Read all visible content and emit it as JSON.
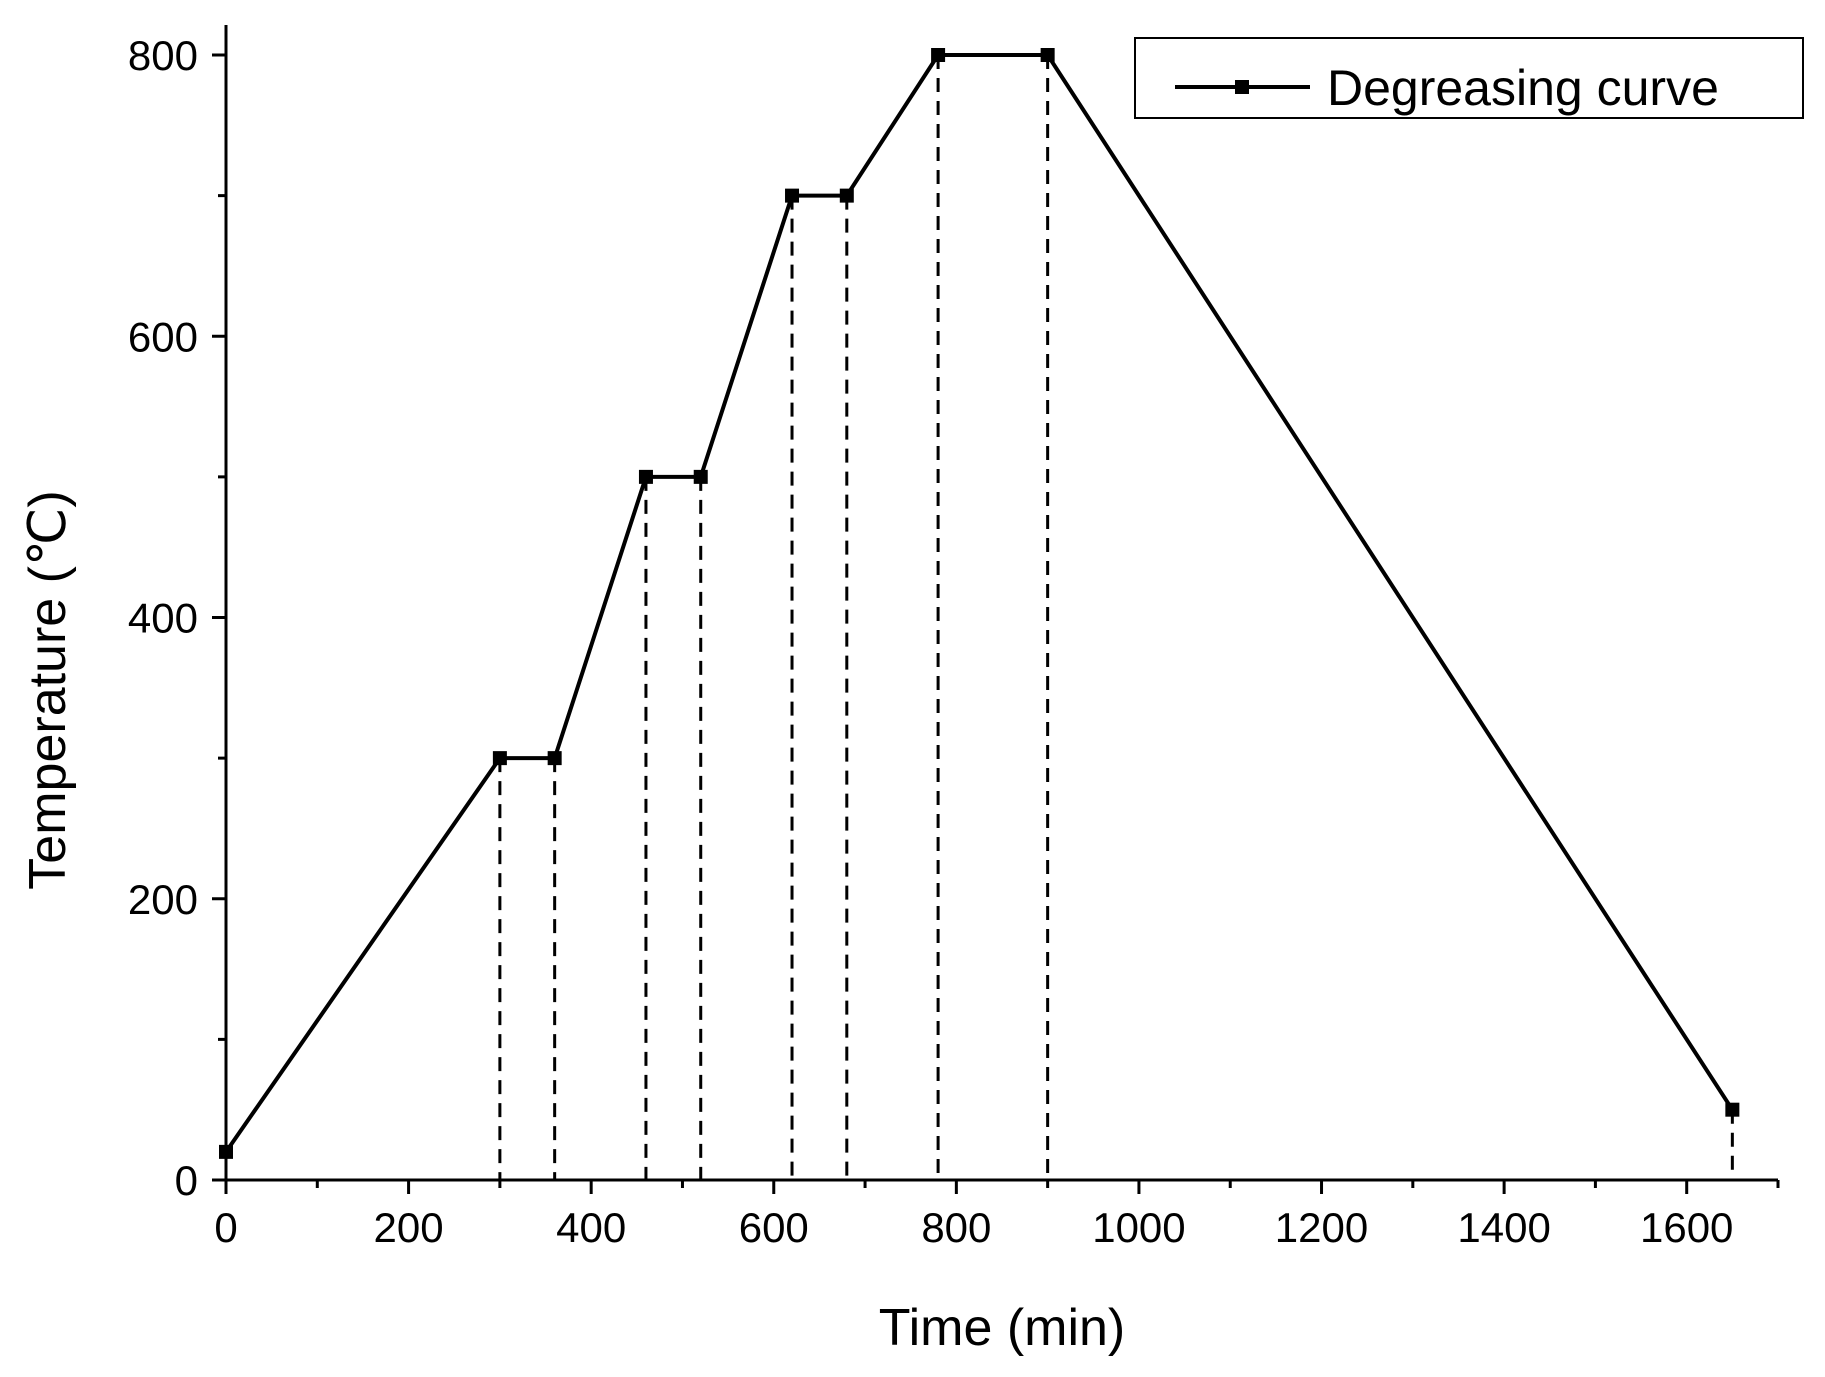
{
  "chart_data": {
    "type": "line",
    "title": "",
    "xlabel": "Time (min)",
    "ylabel": "Temperature (℃)",
    "xlim": [
      0,
      1700
    ],
    "ylim": [
      0,
      800
    ],
    "x_ticks": [
      0,
      200,
      400,
      600,
      800,
      1000,
      1200,
      1400,
      1600
    ],
    "x_tick_labels": [
      "0",
      "200",
      "400",
      "600",
      "800",
      "1000",
      "1200",
      "1400",
      "1600"
    ],
    "x_minor_ticks": [
      100,
      300,
      500,
      700,
      900,
      1100,
      1300,
      1500,
      1700
    ],
    "y_ticks": [
      0,
      200,
      400,
      600,
      800
    ],
    "y_tick_labels": [
      "0",
      "200",
      "400",
      "600",
      "800"
    ],
    "y_minor_ticks": [
      100,
      300,
      500,
      700
    ],
    "grid": false,
    "legend_position": "top-right",
    "series": [
      {
        "name": "Degreasing curve",
        "color": "#000000",
        "marker": "square",
        "x": [
          0,
          300,
          360,
          460,
          520,
          620,
          680,
          780,
          900,
          1650
        ],
        "y": [
          20,
          300,
          300,
          500,
          500,
          700,
          700,
          800,
          800,
          50
        ]
      }
    ],
    "drop_lines": {
      "style": "dashed",
      "x": [
        300,
        360,
        460,
        520,
        620,
        680,
        780,
        900,
        1650
      ]
    }
  }
}
